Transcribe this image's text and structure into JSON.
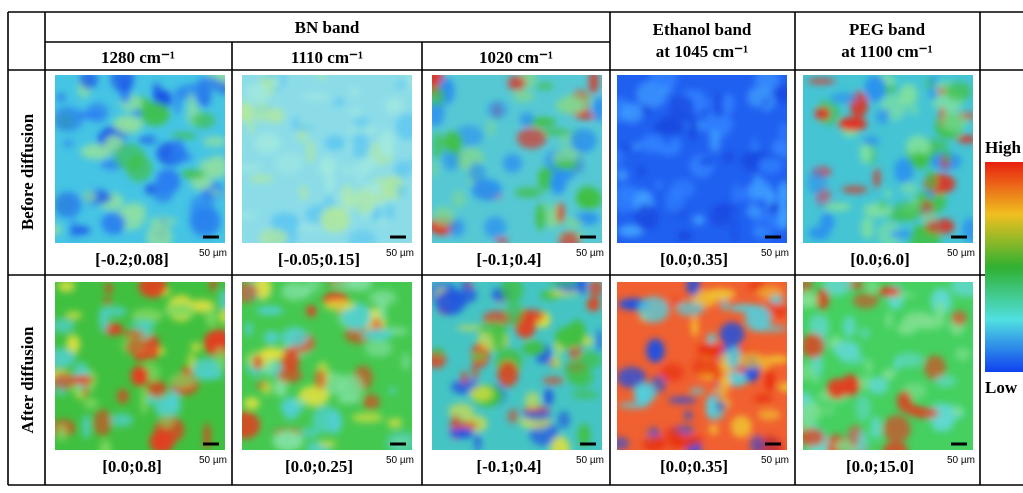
{
  "header": {
    "group": "BN band",
    "bn_columns": [
      "1280 cm⁻¹",
      "1110 cm⁻¹",
      "1020 cm⁻¹"
    ],
    "ethanol": [
      "Ethanol band",
      "at 1045 cm⁻¹"
    ],
    "peg": [
      "PEG band",
      "at 1100 cm⁻¹"
    ]
  },
  "rows": [
    {
      "label": "Before diffusion",
      "ranges": [
        "[-0.2;0.08]",
        "[-0.05;0.15]",
        "[-0.1;0.4]",
        "[0.0;0.35]",
        "[0.0;6.0]"
      ]
    },
    {
      "label": "After diffusion",
      "ranges": [
        "[0.0;0.8]",
        "[0.0;0.25]",
        "[-0.1;0.4]",
        "[0.0;0.35]",
        "[0.0;15.0]"
      ]
    }
  ],
  "scale_bar": "50 µm",
  "colorbar": {
    "high": "High",
    "low": "Low"
  }
}
